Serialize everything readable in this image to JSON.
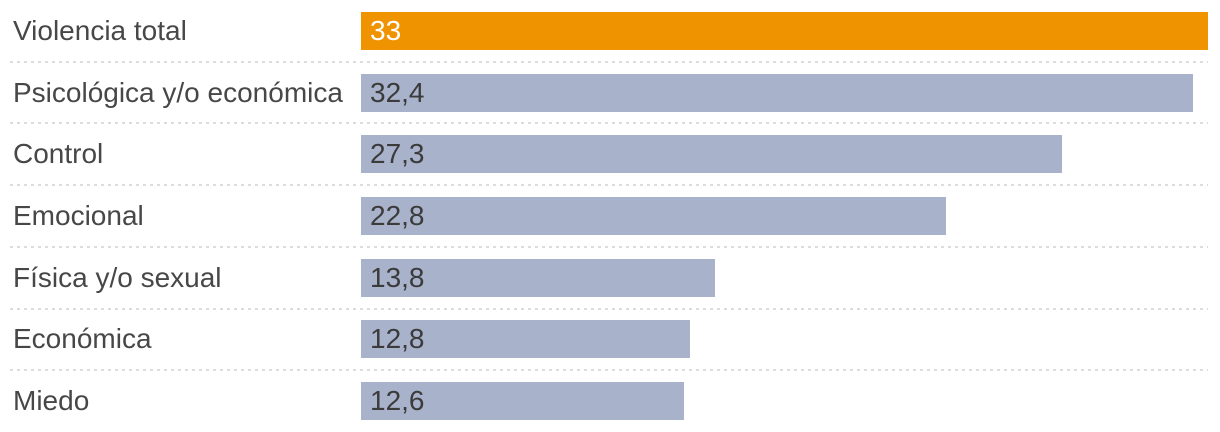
{
  "chart_data": {
    "type": "bar",
    "orientation": "horizontal",
    "title": "",
    "xlabel": "",
    "ylabel": "",
    "xlim": [
      0,
      33
    ],
    "grid": "dotted-row-separators",
    "legend": "none",
    "categories": [
      "Violencia total",
      "Psicológica y/o económica",
      "Control",
      "Emocional",
      "Física y/o sexual",
      "Económica",
      "Miedo"
    ],
    "values": [
      33,
      32.4,
      27.3,
      22.8,
      13.8,
      12.8,
      12.6
    ],
    "value_labels": [
      "33",
      "32,4",
      "27,3",
      "22,8",
      "13,8",
      "12,8",
      "12,6"
    ],
    "highlight_index": 0,
    "colors": {
      "bar_default": "#A8B2CA",
      "bar_highlight": "#F09300",
      "value_text_default": "#3B3B3B",
      "value_text_highlight": "#FFFFFF",
      "label_text": "#474747",
      "separator": "#DCDCDC",
      "background": "#FFFFFF"
    }
  }
}
